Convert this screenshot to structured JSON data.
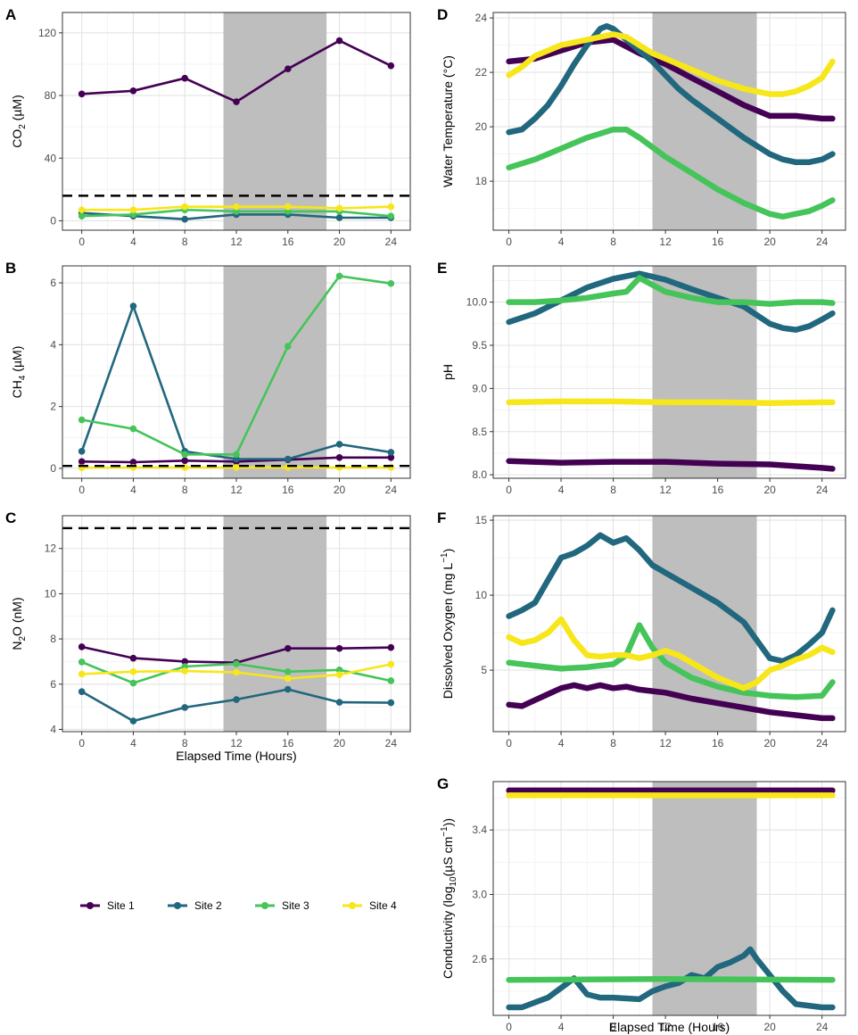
{
  "legend": [
    {
      "name": "Site 1",
      "color": "#440154"
    },
    {
      "name": "Site 2",
      "color": "#21677e"
    },
    {
      "name": "Site 3",
      "color": "#45c45a"
    },
    {
      "name": "Site 4",
      "color": "#f7e619"
    }
  ],
  "shading": {
    "x_start": 11,
    "x_end": 19,
    "color": "#bebebe"
  },
  "chart_data": [
    {
      "panel": "A",
      "type": "line",
      "ylabel_main": "CO",
      "ylabel_sub": "2",
      "ylabel_tail": " (µM)",
      "xlabel": "",
      "xlim": [
        -1.5,
        25.5
      ],
      "ylim": [
        -6,
        133
      ],
      "xticks": [
        "0",
        "4",
        "8",
        "12",
        "16",
        "20",
        "24"
      ],
      "yticks": [
        "0",
        "40",
        "80",
        "120"
      ],
      "hline": 16,
      "series": [
        {
          "name": "Site 1",
          "x": [
            0,
            4,
            8,
            12,
            16,
            20,
            24
          ],
          "y": [
            81,
            83,
            91,
            76,
            97,
            115,
            99
          ]
        },
        {
          "name": "Site 2",
          "x": [
            0,
            4,
            8,
            12,
            16,
            20,
            24
          ],
          "y": [
            5,
            3,
            1,
            4,
            4,
            2,
            2
          ]
        },
        {
          "name": "Site 3",
          "x": [
            0,
            4,
            8,
            12,
            16,
            20,
            24
          ],
          "y": [
            3,
            4,
            7,
            6,
            6,
            6,
            3
          ]
        },
        {
          "name": "Site 4",
          "x": [
            0,
            4,
            8,
            12,
            16,
            20,
            24
          ],
          "y": [
            7,
            7,
            9,
            9,
            9,
            8,
            9
          ]
        }
      ]
    },
    {
      "panel": "B",
      "type": "line",
      "ylabel_main": "CH",
      "ylabel_sub": "4",
      "ylabel_tail": " (µM)",
      "xlabel": "",
      "xlim": [
        -1.5,
        25.5
      ],
      "ylim": [
        -0.32,
        6.55
      ],
      "xticks": [
        "0",
        "4",
        "8",
        "12",
        "16",
        "20",
        "24"
      ],
      "yticks": [
        "0",
        "2",
        "4",
        "6"
      ],
      "hline": 0.08,
      "series": [
        {
          "name": "Site 1",
          "x": [
            0,
            4,
            8,
            12,
            16,
            20,
            24
          ],
          "y": [
            0.22,
            0.2,
            0.25,
            0.22,
            0.28,
            0.35,
            0.35
          ]
        },
        {
          "name": "Site 2",
          "x": [
            0,
            4,
            8,
            12,
            16,
            20,
            24
          ],
          "y": [
            0.55,
            5.25,
            0.55,
            0.3,
            0.3,
            0.78,
            0.52
          ]
        },
        {
          "name": "Site 3",
          "x": [
            0,
            4,
            8,
            12,
            16,
            20,
            24
          ],
          "y": [
            1.57,
            1.28,
            0.45,
            0.45,
            3.95,
            6.22,
            5.98
          ]
        },
        {
          "name": "Site 4",
          "x": [
            0,
            4,
            8,
            12,
            16,
            20,
            24
          ],
          "y": [
            0.02,
            0.03,
            0.03,
            0.03,
            0.03,
            0.03,
            0.03
          ]
        }
      ]
    },
    {
      "panel": "C",
      "type": "line",
      "ylabel_main": "N",
      "ylabel_sub": "2",
      "ylabel_tail": "O (nM)",
      "xlabel": "Elapsed Time (Hours)",
      "xlim": [
        -1.5,
        25.5
      ],
      "ylim": [
        3.9,
        13.45
      ],
      "xticks": [
        "0",
        "4",
        "8",
        "12",
        "16",
        "20",
        "24"
      ],
      "yticks": [
        "4",
        "6",
        "8",
        "10",
        "12"
      ],
      "hline": 12.9,
      "series": [
        {
          "name": "Site 1",
          "x": [
            0,
            4,
            8,
            12,
            16,
            20,
            24
          ],
          "y": [
            7.65,
            7.15,
            7.0,
            6.95,
            7.58,
            7.58,
            7.62
          ]
        },
        {
          "name": "Site 2",
          "x": [
            0,
            4,
            8,
            12,
            16,
            20,
            24
          ],
          "y": [
            5.67,
            4.37,
            4.97,
            5.32,
            5.77,
            5.2,
            5.18
          ]
        },
        {
          "name": "Site 3",
          "x": [
            0,
            4,
            8,
            12,
            16,
            20,
            24
          ],
          "y": [
            6.98,
            6.05,
            6.78,
            6.9,
            6.55,
            6.63,
            6.15
          ]
        },
        {
          "name": "Site 4",
          "x": [
            0,
            4,
            8,
            12,
            16,
            20,
            24
          ],
          "y": [
            6.45,
            6.55,
            6.58,
            6.52,
            6.25,
            6.42,
            6.88
          ]
        }
      ]
    },
    {
      "panel": "D",
      "type": "scatter-line",
      "ylabel_main": "Water Temperature (°C)",
      "ylabel_sub": "",
      "ylabel_tail": "",
      "xlabel": "",
      "xlim": [
        -1.2,
        25.8
      ],
      "ylim": [
        16.2,
        24.2
      ],
      "xticks": [
        "0",
        "4",
        "8",
        "12",
        "16",
        "20",
        "24"
      ],
      "yticks": [
        "18",
        "20",
        "22",
        "24"
      ],
      "series": [
        {
          "name": "Site 1",
          "x": [
            0,
            2,
            4,
            6,
            8,
            10,
            12,
            14,
            16,
            18,
            20,
            22,
            24,
            24.8
          ],
          "y": [
            22.4,
            22.5,
            22.8,
            23.1,
            23.2,
            22.7,
            22.3,
            21.8,
            21.3,
            20.8,
            20.4,
            20.4,
            20.3,
            20.3
          ]
        },
        {
          "name": "Site 2",
          "x": [
            0,
            1,
            2,
            3,
            4,
            5,
            6,
            7,
            7.5,
            8,
            9,
            10,
            11,
            12,
            13,
            14,
            16,
            18,
            20,
            21,
            22,
            23,
            24,
            24.8
          ],
          "y": [
            19.8,
            19.9,
            20.3,
            20.8,
            21.5,
            22.3,
            23.0,
            23.6,
            23.7,
            23.6,
            23.2,
            22.8,
            22.4,
            21.9,
            21.4,
            21.0,
            20.3,
            19.6,
            19.0,
            18.8,
            18.7,
            18.7,
            18.8,
            19.0
          ]
        },
        {
          "name": "Site 3",
          "x": [
            0,
            2,
            4,
            6,
            8,
            9,
            10,
            12,
            14,
            16,
            18,
            19,
            20,
            21,
            22,
            23,
            24,
            24.8
          ],
          "y": [
            18.5,
            18.8,
            19.2,
            19.6,
            19.9,
            19.9,
            19.6,
            18.9,
            18.3,
            17.7,
            17.2,
            17.0,
            16.8,
            16.7,
            16.8,
            16.9,
            17.1,
            17.3
          ]
        },
        {
          "name": "Site 4",
          "x": [
            0,
            1,
            2,
            4,
            6,
            8,
            9,
            10,
            11,
            12,
            14,
            16,
            18,
            20,
            21,
            22,
            23,
            24,
            24.8
          ],
          "y": [
            21.9,
            22.2,
            22.6,
            23.0,
            23.2,
            23.4,
            23.3,
            23.0,
            22.7,
            22.5,
            22.1,
            21.7,
            21.4,
            21.2,
            21.2,
            21.3,
            21.5,
            21.8,
            22.4
          ]
        }
      ]
    },
    {
      "panel": "E",
      "type": "scatter-line",
      "ylabel_main": "pH",
      "ylabel_sub": "",
      "ylabel_tail": "",
      "xlabel": "",
      "xlim": [
        -1.2,
        25.8
      ],
      "ylim": [
        7.96,
        10.42
      ],
      "xticks": [
        "0",
        "4",
        "8",
        "12",
        "16",
        "20",
        "24"
      ],
      "yticks": [
        "8.0",
        "8.5",
        "9.0",
        "9.5",
        "10.0"
      ],
      "series": [
        {
          "name": "Site 1",
          "x": [
            0,
            4,
            8,
            12,
            16,
            20,
            24,
            24.8
          ],
          "y": [
            8.16,
            8.14,
            8.15,
            8.15,
            8.13,
            8.12,
            8.08,
            8.07
          ]
        },
        {
          "name": "Site 2",
          "x": [
            0,
            2,
            4,
            6,
            8,
            10,
            12,
            14,
            16,
            18,
            19,
            20,
            21,
            22,
            23,
            24,
            24.8
          ],
          "y": [
            9.77,
            9.87,
            10.02,
            10.17,
            10.27,
            10.33,
            10.26,
            10.15,
            10.05,
            9.95,
            9.85,
            9.75,
            9.7,
            9.68,
            9.72,
            9.8,
            9.87
          ]
        },
        {
          "name": "Site 3",
          "x": [
            0,
            2,
            4,
            6,
            8,
            9,
            10,
            11,
            12,
            14,
            16,
            18,
            20,
            22,
            24,
            24.8
          ],
          "y": [
            10.0,
            10.0,
            10.02,
            10.05,
            10.1,
            10.12,
            10.28,
            10.2,
            10.12,
            10.05,
            10.0,
            10.0,
            9.98,
            10.0,
            10.0,
            9.99
          ]
        },
        {
          "name": "Site 4",
          "x": [
            0,
            4,
            8,
            12,
            16,
            20,
            24,
            24.8
          ],
          "y": [
            8.84,
            8.85,
            8.85,
            8.84,
            8.84,
            8.83,
            8.84,
            8.84
          ]
        }
      ]
    },
    {
      "panel": "F",
      "type": "scatter-line",
      "ylabel_main": "Dissolved Oxygen (mg L",
      "ylabel_sup": "−1",
      "ylabel_tail": ")",
      "xlabel": "",
      "xlim": [
        -1.2,
        25.8
      ],
      "ylim": [
        0.9,
        15.3
      ],
      "xticks": [
        "0",
        "4",
        "8",
        "12",
        "16",
        "20",
        "24"
      ],
      "yticks": [
        "5",
        "10",
        "15"
      ],
      "series": [
        {
          "name": "Site 1",
          "x": [
            0,
            1,
            2,
            3,
            4,
            5,
            6,
            7,
            8,
            9,
            10,
            11,
            12,
            13,
            14,
            16,
            18,
            20,
            22,
            24,
            24.8
          ],
          "y": [
            2.7,
            2.6,
            3.0,
            3.4,
            3.8,
            4.0,
            3.8,
            4.0,
            3.8,
            3.9,
            3.7,
            3.6,
            3.5,
            3.3,
            3.1,
            2.8,
            2.5,
            2.2,
            2.0,
            1.8,
            1.8
          ]
        },
        {
          "name": "Site 2",
          "x": [
            0,
            1,
            2,
            3,
            4,
            5,
            6,
            7,
            8,
            9,
            10,
            11,
            12,
            13,
            14,
            16,
            18,
            19,
            20,
            21,
            22,
            23,
            24,
            24.8
          ],
          "y": [
            8.6,
            9.0,
            9.5,
            11.0,
            12.5,
            12.8,
            13.3,
            14.0,
            13.5,
            13.8,
            13.0,
            12.0,
            11.5,
            11.0,
            10.5,
            9.5,
            8.2,
            7.0,
            5.8,
            5.6,
            6.0,
            6.7,
            7.5,
            9.0
          ]
        },
        {
          "name": "Site 3",
          "x": [
            0,
            2,
            4,
            6,
            8,
            9,
            10,
            11,
            12,
            14,
            16,
            18,
            20,
            22,
            24,
            24.8
          ],
          "y": [
            5.5,
            5.3,
            5.1,
            5.2,
            5.4,
            6.0,
            8.0,
            6.5,
            5.5,
            4.5,
            3.9,
            3.5,
            3.3,
            3.2,
            3.3,
            4.2
          ]
        },
        {
          "name": "Site 4",
          "x": [
            0,
            1,
            2,
            3,
            4,
            5,
            6,
            7,
            8,
            9,
            10,
            11,
            12,
            13,
            14,
            15,
            16,
            18,
            19,
            20,
            21,
            22,
            23,
            24,
            24.8
          ],
          "y": [
            7.2,
            6.8,
            7.0,
            7.5,
            8.4,
            7.0,
            6.0,
            5.9,
            6.0,
            6.0,
            5.8,
            6.0,
            6.3,
            6.0,
            5.5,
            5.0,
            4.5,
            3.8,
            4.2,
            5.0,
            5.3,
            5.7,
            6.0,
            6.5,
            6.2
          ]
        }
      ]
    },
    {
      "panel": "G",
      "type": "scatter-line",
      "ylabel_main": "Conductivity (log",
      "ylabel_sub": "10",
      "ylabel_tail": "(µS cm",
      "ylabel_sup": "−1",
      "ylabel_end": "))",
      "xlabel": "Elapsed Time (Hours)",
      "xlim": [
        -1.2,
        25.8
      ],
      "ylim": [
        2.25,
        3.7
      ],
      "xticks": [
        "0",
        "4",
        "8",
        "12",
        "16",
        "20",
        "24"
      ],
      "yticks": [
        "2.6",
        "3.0",
        "3.4"
      ],
      "series": [
        {
          "name": "Site 1",
          "x": [
            0,
            12,
            24.8
          ],
          "y": [
            3.645,
            3.645,
            3.645
          ]
        },
        {
          "name": "Site 2",
          "x": [
            0,
            1,
            2,
            3,
            4,
            5,
            6,
            7,
            8,
            10,
            11,
            12,
            13,
            14,
            15,
            16,
            17,
            18,
            18.5,
            19,
            20,
            21,
            22,
            24,
            24.8
          ],
          "y": [
            2.3,
            2.3,
            2.33,
            2.36,
            2.42,
            2.48,
            2.38,
            2.36,
            2.36,
            2.35,
            2.4,
            2.43,
            2.45,
            2.5,
            2.48,
            2.55,
            2.58,
            2.62,
            2.66,
            2.6,
            2.5,
            2.4,
            2.32,
            2.3,
            2.3
          ]
        },
        {
          "name": "Site 3",
          "x": [
            0,
            12,
            24.8
          ],
          "y": [
            2.47,
            2.475,
            2.47
          ]
        },
        {
          "name": "Site 4",
          "x": [
            0,
            12,
            24.8
          ],
          "y": [
            3.615,
            3.615,
            3.615
          ]
        }
      ]
    }
  ]
}
